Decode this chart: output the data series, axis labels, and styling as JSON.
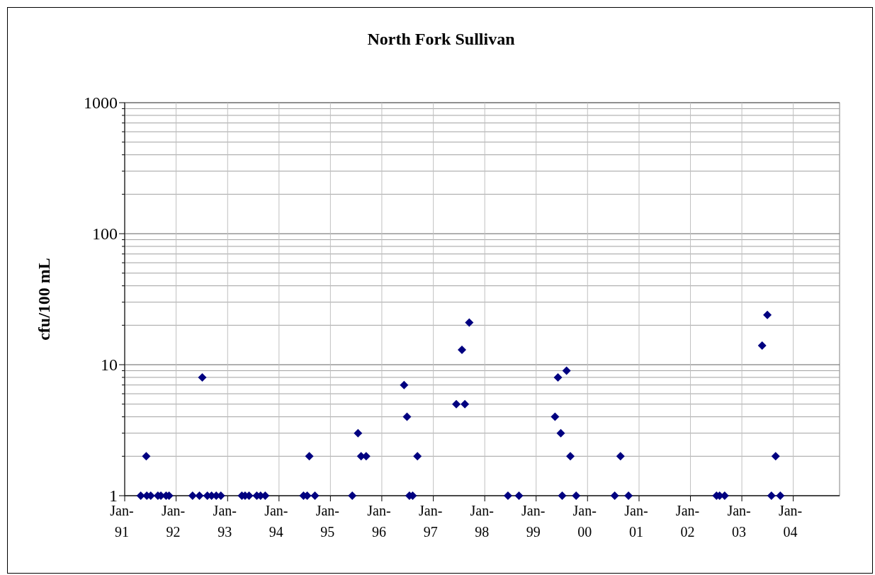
{
  "chart_data": {
    "type": "scatter",
    "title": "North Fork Sullivan",
    "ylabel": "cfu/100 mL",
    "log": "y",
    "grid": true,
    "marker": "diamond",
    "xlim": [
      "1991-01-01",
      "2004-11-25"
    ],
    "xticks": [
      {
        "value": "1991-01-01",
        "label": "Jan-91"
      },
      {
        "value": "1992-01-01",
        "label": "Jan-92"
      },
      {
        "value": "1993-01-01",
        "label": "Jan-93"
      },
      {
        "value": "1994-01-01",
        "label": "Jan-94"
      },
      {
        "value": "1995-01-01",
        "label": "Jan-95"
      },
      {
        "value": "1996-01-01",
        "label": "Jan-96"
      },
      {
        "value": "1997-01-01",
        "label": "Jan-97"
      },
      {
        "value": "1998-01-01",
        "label": "Jan-98"
      },
      {
        "value": "1999-01-01",
        "label": "Jan-99"
      },
      {
        "value": "2000-01-01",
        "label": "Jan-00"
      },
      {
        "value": "2001-01-01",
        "label": "Jan-01"
      },
      {
        "value": "2002-01-01",
        "label": "Jan-02"
      },
      {
        "value": "2003-01-01",
        "label": "Jan-03"
      },
      {
        "value": "2004-01-01",
        "label": "Jan-04"
      }
    ],
    "ylim": [
      1,
      1000
    ],
    "yticks": [
      1,
      10,
      100,
      1000
    ],
    "series": [
      {
        "color": "#000080",
        "x": [
          "1991-04-25",
          "1991-06-03",
          "1991-06-07",
          "1991-07-05",
          "1991-08-25",
          "1991-09-15",
          "1991-10-22",
          "1991-11-12",
          "1992-04-27",
          "1992-06-15",
          "1992-07-05",
          "1992-08-10",
          "1992-09-09",
          "1992-10-12",
          "1992-11-14",
          "1993-04-12",
          "1993-05-05",
          "1993-06-02",
          "1993-07-27",
          "1993-08-23",
          "1993-09-25",
          "1994-06-24",
          "1994-07-20",
          "1994-08-04",
          "1994-09-13",
          "1995-06-05",
          "1995-07-16",
          "1995-08-07",
          "1995-09-12",
          "1996-06-07",
          "1996-06-28",
          "1996-07-15",
          "1996-08-07",
          "1996-09-10",
          "1997-06-13",
          "1997-07-23",
          "1997-08-13",
          "1997-09-13",
          "1998-06-15",
          "1998-09-01",
          "1999-05-15",
          "1999-06-05",
          "1999-06-25",
          "1999-07-05",
          "1999-08-05",
          "1999-09-01",
          "1999-10-12",
          "2000-07-12",
          "2000-08-22",
          "2000-10-18",
          "2002-07-05",
          "2002-07-27",
          "2002-09-01",
          "2003-05-25",
          "2003-07-01",
          "2003-07-30",
          "2003-08-29",
          "2003-10-01"
        ],
        "values": [
          1,
          2,
          1,
          1,
          1,
          1,
          1,
          1,
          1,
          1,
          8,
          1,
          1,
          1,
          1,
          1,
          1,
          1,
          1,
          1,
          1,
          1,
          1,
          2,
          1,
          1,
          3,
          2,
          2,
          7,
          4,
          1,
          1,
          2,
          5,
          13,
          5,
          21,
          1,
          1,
          4,
          8,
          3,
          1,
          9,
          2,
          1,
          1,
          2,
          1,
          1,
          1,
          1,
          14,
          24,
          1,
          2,
          1
        ]
      }
    ]
  }
}
